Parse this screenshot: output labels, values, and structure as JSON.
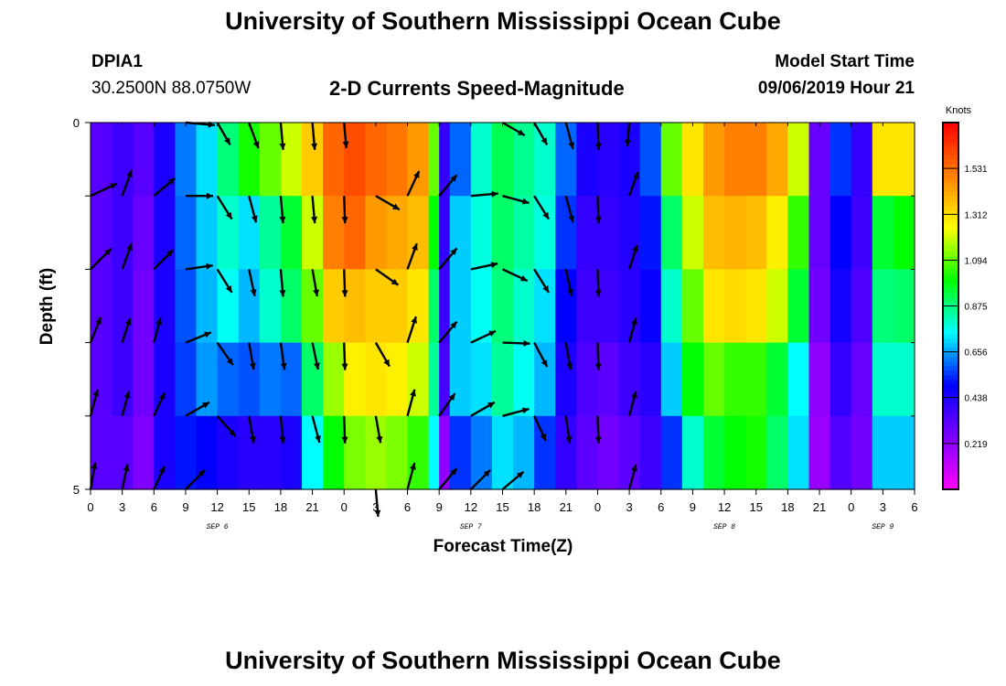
{
  "header": {
    "title": "University of Southern Mississippi Ocean Cube",
    "footer_title": "University of Southern Mississippi Ocean Cube",
    "station_id": "DPIA1",
    "station_coords": "30.2500N 88.0750W",
    "subtitle": "2-D Currents Speed-Magnitude",
    "model_start_label": "Model Start Time",
    "model_start_value": "09/06/2019 Hour 21"
  },
  "chart_data": {
    "type": "heatmap",
    "title": "2-D Currents Speed-Magnitude",
    "xlabel": "Forecast Time(Z)",
    "ylabel": "Depth (ft)",
    "x_ticks": [
      "0",
      "3",
      "6",
      "9",
      "12",
      "15",
      "18",
      "21",
      "0",
      "3",
      "6",
      "9",
      "12",
      "15",
      "18",
      "21",
      "0",
      "3",
      "6",
      "9",
      "12",
      "15",
      "18",
      "21",
      "0",
      "3",
      "6"
    ],
    "x_tick_hours": [
      0,
      3,
      6,
      9,
      12,
      15,
      18,
      21,
      24,
      27,
      30,
      33,
      36,
      39,
      42,
      45,
      48,
      51,
      54,
      57,
      60,
      63,
      66,
      69,
      72,
      75,
      78
    ],
    "x_range_hours": [
      0,
      78
    ],
    "date_labels": [
      {
        "text": "SEP 6",
        "hour": 12
      },
      {
        "text": "SEP 7",
        "hour": 36
      },
      {
        "text": "SEP 8",
        "hour": 60
      },
      {
        "text": "SEP 9",
        "hour": 75
      }
    ],
    "y_tick_labels": [
      {
        "value": 0,
        "text": "0"
      },
      {
        "value": 5,
        "text": "5"
      }
    ],
    "y_range": [
      0,
      5
    ],
    "depth_rows": [
      0.5,
      1.5,
      2.5,
      3.5,
      4.5
    ],
    "colorbar": {
      "label": "Knots",
      "ticks": [
        "0.219",
        "0.438",
        "0.656",
        "0.875",
        "1.094",
        "1.312",
        "1.531"
      ],
      "tick_values": [
        0.219,
        0.438,
        0.656,
        0.875,
        1.094,
        1.312,
        1.531
      ],
      "range": [
        0,
        1.75
      ],
      "colors": [
        "#ff00ff",
        "#8000ff",
        "#0000ff",
        "#00ffff",
        "#00ff00",
        "#ffff00",
        "#ff8000",
        "#ff0000"
      ]
    },
    "speed_by_hour": [
      {
        "hour": 0,
        "speeds": [
          0.33,
          0.33,
          0.33,
          0.33,
          0.33
        ]
      },
      {
        "hour": 2,
        "speeds": [
          0.38,
          0.38,
          0.38,
          0.38,
          0.33
        ]
      },
      {
        "hour": 4,
        "speeds": [
          0.33,
          0.3,
          0.28,
          0.28,
          0.25
        ]
      },
      {
        "hour": 6,
        "speeds": [
          0.45,
          0.45,
          0.45,
          0.45,
          0.45
        ]
      },
      {
        "hour": 8,
        "speeds": [
          0.62,
          0.6,
          0.58,
          0.56,
          0.52
        ]
      },
      {
        "hour": 10,
        "speeds": [
          0.72,
          0.7,
          0.68,
          0.65,
          0.5
        ]
      },
      {
        "hour": 12,
        "speeds": [
          0.88,
          0.8,
          0.76,
          0.6,
          0.45
        ]
      },
      {
        "hour": 14,
        "speeds": [
          1.02,
          0.72,
          0.68,
          0.58,
          0.42
        ]
      },
      {
        "hour": 16,
        "speeds": [
          1.1,
          0.85,
          0.8,
          0.62,
          0.42
        ]
      },
      {
        "hour": 18,
        "speeds": [
          1.2,
          0.95,
          0.9,
          0.6,
          0.45
        ]
      },
      {
        "hour": 20,
        "speeds": [
          1.35,
          1.2,
          1.1,
          0.9,
          0.75
        ]
      },
      {
        "hour": 22,
        "speeds": [
          1.55,
          1.5,
          1.35,
          1.15,
          1.0
        ]
      },
      {
        "hour": 24,
        "speeds": [
          1.6,
          1.55,
          1.38,
          1.28,
          1.12
        ]
      },
      {
        "hour": 26,
        "speeds": [
          1.55,
          1.45,
          1.35,
          1.3,
          1.15
        ]
      },
      {
        "hour": 28,
        "speeds": [
          1.52,
          1.42,
          1.35,
          1.28,
          1.12
        ]
      },
      {
        "hour": 30,
        "speeds": [
          1.45,
          1.38,
          1.3,
          1.2,
          1.05
        ]
      },
      {
        "hour": 32,
        "speeds": [
          1.1,
          1.0,
          0.9,
          0.85,
          0.75
        ]
      },
      {
        "hour": 33,
        "speeds": [
          0.4,
          0.4,
          0.38,
          0.36,
          0.22
        ]
      },
      {
        "hour": 34,
        "speeds": [
          0.6,
          0.7,
          0.7,
          0.7,
          0.55
        ]
      },
      {
        "hour": 36,
        "speeds": [
          0.8,
          0.78,
          0.76,
          0.72,
          0.62
        ]
      },
      {
        "hour": 38,
        "speeds": [
          0.92,
          0.9,
          0.88,
          0.85,
          0.72
        ]
      },
      {
        "hour": 40,
        "speeds": [
          0.86,
          0.84,
          0.8,
          0.76,
          0.68
        ]
      },
      {
        "hour": 42,
        "speeds": [
          0.8,
          0.78,
          0.72,
          0.68,
          0.55
        ]
      },
      {
        "hour": 44,
        "speeds": [
          0.6,
          0.55,
          0.5,
          0.45,
          0.4
        ]
      },
      {
        "hour": 46,
        "speeds": [
          0.45,
          0.4,
          0.38,
          0.35,
          0.32
        ]
      },
      {
        "hour": 48,
        "speeds": [
          0.42,
          0.4,
          0.38,
          0.32,
          0.28
        ]
      },
      {
        "hour": 50,
        "speeds": [
          0.45,
          0.43,
          0.42,
          0.38,
          0.32
        ]
      },
      {
        "hour": 52,
        "speeds": [
          0.58,
          0.52,
          0.48,
          0.42,
          0.38
        ]
      },
      {
        "hour": 54,
        "speeds": [
          1.1,
          0.9,
          0.8,
          0.7,
          0.55
        ]
      },
      {
        "hour": 56,
        "speeds": [
          1.3,
          1.2,
          1.1,
          1.0,
          0.8
        ]
      },
      {
        "hour": 58,
        "speeds": [
          1.45,
          1.38,
          1.3,
          1.1,
          0.95
        ]
      },
      {
        "hour": 60,
        "speeds": [
          1.5,
          1.4,
          1.32,
          1.05,
          1.0
        ]
      },
      {
        "hour": 62,
        "speeds": [
          1.5,
          1.38,
          1.3,
          1.05,
          1.02
        ]
      },
      {
        "hour": 64,
        "speeds": [
          1.42,
          1.28,
          1.2,
          0.95,
          0.9
        ]
      },
      {
        "hour": 66,
        "speeds": [
          1.2,
          1.05,
          0.95,
          0.75,
          0.72
        ]
      },
      {
        "hour": 68,
        "speeds": [
          0.3,
          0.3,
          0.28,
          0.22,
          0.2
        ]
      },
      {
        "hour": 70,
        "speeds": [
          0.55,
          0.5,
          0.46,
          0.4,
          0.34
        ]
      },
      {
        "hour": 72,
        "speeds": [
          0.4,
          0.38,
          0.35,
          0.3,
          0.28
        ]
      },
      {
        "hour": 74,
        "speeds": [
          1.3,
          0.95,
          0.88,
          0.8,
          0.7
        ]
      },
      {
        "hour": 76,
        "speeds": [
          1.3,
          1.0,
          0.9,
          0.8,
          0.7
        ]
      }
    ],
    "arrows": [
      {
        "hour": 0,
        "depth": 1,
        "dir": 65,
        "len": 32
      },
      {
        "hour": 0,
        "depth": 2,
        "dir": 45,
        "len": 32
      },
      {
        "hour": 0,
        "depth": 3,
        "dir": 22,
        "len": 30
      },
      {
        "hour": 0,
        "depth": 4,
        "dir": 15,
        "len": 30
      },
      {
        "hour": 0,
        "depth": 5,
        "dir": 10,
        "len": 30
      },
      {
        "hour": 6,
        "depth": 1,
        "dir": 20,
        "len": 30
      },
      {
        "hour": 6,
        "depth": 2,
        "dir": 20,
        "len": 30
      },
      {
        "hour": 6,
        "depth": 3,
        "dir": 18,
        "len": 28
      },
      {
        "hour": 6,
        "depth": 4,
        "dir": 15,
        "len": 28
      },
      {
        "hour": 6,
        "depth": 5,
        "dir": 12,
        "len": 28
      },
      {
        "hour": 12,
        "depth": 1,
        "dir": 50,
        "len": 30
      },
      {
        "hour": 12,
        "depth": 2,
        "dir": 45,
        "len": 30
      },
      {
        "hour": 12,
        "depth": 3,
        "dir": 15,
        "len": 28
      },
      {
        "hour": 12,
        "depth": 4,
        "dir": 25,
        "len": 28
      },
      {
        "hour": 12,
        "depth": 5,
        "dir": 25,
        "len": 28
      },
      {
        "hour": 18,
        "depth": 0,
        "dir": 95,
        "len": 32
      },
      {
        "hour": 18,
        "depth": 1,
        "dir": 90,
        "len": 30
      },
      {
        "hour": 18,
        "depth": 2,
        "dir": 82,
        "len": 30
      },
      {
        "hour": 18,
        "depth": 3,
        "dir": 68,
        "len": 30
      },
      {
        "hour": 18,
        "depth": 4,
        "dir": 60,
        "len": 30
      },
      {
        "hour": 18,
        "depth": 5,
        "dir": 45,
        "len": 30
      },
      {
        "hour": 24,
        "depth": 0,
        "dir": 150,
        "len": 28
      },
      {
        "hour": 24,
        "depth": 1,
        "dir": 148,
        "len": 30
      },
      {
        "hour": 24,
        "depth": 2,
        "dir": 148,
        "len": 30
      },
      {
        "hour": 24,
        "depth": 3,
        "dir": 145,
        "len": 30
      },
      {
        "hour": 24,
        "depth": 4,
        "dir": 138,
        "len": 30
      },
      {
        "hour": 30,
        "depth": 0,
        "dir": 160,
        "len": 30
      },
      {
        "hour": 30,
        "depth": 1,
        "dir": 165,
        "len": 30
      },
      {
        "hour": 30,
        "depth": 2,
        "dir": 168,
        "len": 30
      },
      {
        "hour": 30,
        "depth": 3,
        "dir": 170,
        "len": 30
      },
      {
        "hour": 30,
        "depth": 4,
        "dir": 170,
        "len": 30
      },
      {
        "hour": 36,
        "depth": 0,
        "dir": 175,
        "len": 30
      },
      {
        "hour": 36,
        "depth": 1,
        "dir": 175,
        "len": 30
      },
      {
        "hour": 36,
        "depth": 2,
        "dir": 175,
        "len": 30
      },
      {
        "hour": 36,
        "depth": 3,
        "dir": 172,
        "len": 30
      },
      {
        "hour": 36,
        "depth": 4,
        "dir": 175,
        "len": 30
      },
      {
        "hour": 42,
        "depth": 0,
        "dir": 175,
        "len": 30
      },
      {
        "hour": 42,
        "depth": 1,
        "dir": 175,
        "len": 30
      },
      {
        "hour": 42,
        "depth": 2,
        "dir": 170,
        "len": 30
      },
      {
        "hour": 42,
        "depth": 3,
        "dir": 168,
        "len": 30
      },
      {
        "hour": 42,
        "depth": 4,
        "dir": 165,
        "len": 30
      },
      {
        "hour": 48,
        "depth": 0,
        "dir": 175,
        "len": 28
      },
      {
        "hour": 48,
        "depth": 1,
        "dir": 178,
        "len": 30
      },
      {
        "hour": 48,
        "depth": 2,
        "dir": 178,
        "len": 30
      },
      {
        "hour": 48,
        "depth": 3,
        "dir": 178,
        "len": 30
      },
      {
        "hour": 48,
        "depth": 4,
        "dir": 178,
        "len": 30
      },
      {
        "hour": 54,
        "depth": 1,
        "dir": 120,
        "len": 30
      },
      {
        "hour": 54,
        "depth": 2,
        "dir": 125,
        "len": 30
      },
      {
        "hour": 54,
        "depth": 3,
        "dir": 150,
        "len": 30
      },
      {
        "hour": 54,
        "depth": 4,
        "dir": 170,
        "len": 30
      },
      {
        "hour": 54,
        "depth": 5,
        "dir": 175,
        "len": 30
      },
      {
        "hour": 60,
        "depth": 1,
        "dir": 25,
        "len": 30
      },
      {
        "hour": 60,
        "depth": 2,
        "dir": 20,
        "len": 30
      },
      {
        "hour": 60,
        "depth": 3,
        "dir": 18,
        "len": 30
      },
      {
        "hour": 60,
        "depth": 4,
        "dir": 15,
        "len": 30
      },
      {
        "hour": 60,
        "depth": 5,
        "dir": 15,
        "len": 30
      },
      {
        "hour": 66,
        "depth": 1,
        "dir": 40,
        "len": 30
      },
      {
        "hour": 66,
        "depth": 2,
        "dir": 40,
        "len": 30
      },
      {
        "hour": 66,
        "depth": 3,
        "dir": 40,
        "len": 30
      },
      {
        "hour": 66,
        "depth": 4,
        "dir": 35,
        "len": 30
      },
      {
        "hour": 66,
        "depth": 5,
        "dir": 40,
        "len": 30
      },
      {
        "hour": 72,
        "depth": 1,
        "dir": 85,
        "len": 30
      },
      {
        "hour": 72,
        "depth": 2,
        "dir": 78,
        "len": 30
      },
      {
        "hour": 72,
        "depth": 3,
        "dir": 65,
        "len": 30
      },
      {
        "hour": 72,
        "depth": 4,
        "dir": 60,
        "len": 30
      },
      {
        "hour": 72,
        "depth": 5,
        "dir": 45,
        "len": 30
      },
      {
        "hour": 78,
        "depth": 0,
        "dir": 120,
        "len": 28
      },
      {
        "hour": 78,
        "depth": 1,
        "dir": 105,
        "len": 30
      },
      {
        "hour": 78,
        "depth": 2,
        "dir": 115,
        "len": 30
      },
      {
        "hour": 78,
        "depth": 3,
        "dir": 92,
        "len": 30
      },
      {
        "hour": 78,
        "depth": 4,
        "dir": 75,
        "len": 30
      },
      {
        "hour": 78,
        "depth": 5,
        "dir": 50,
        "len": 30
      },
      {
        "hour": 84,
        "depth": 0,
        "dir": 150,
        "len": 28
      },
      {
        "hour": 84,
        "depth": 1,
        "dir": 148,
        "len": 30
      },
      {
        "hour": 84,
        "depth": 2,
        "dir": 148,
        "len": 30
      },
      {
        "hour": 84,
        "depth": 3,
        "dir": 152,
        "len": 30
      },
      {
        "hour": 84,
        "depth": 4,
        "dir": 155,
        "len": 30
      },
      {
        "hour": 90,
        "depth": 0,
        "dir": 165,
        "len": 30
      },
      {
        "hour": 90,
        "depth": 1,
        "dir": 165,
        "len": 30
      },
      {
        "hour": 90,
        "depth": 2,
        "dir": 168,
        "len": 30
      },
      {
        "hour": 90,
        "depth": 3,
        "dir": 170,
        "len": 30
      },
      {
        "hour": 90,
        "depth": 4,
        "dir": 172,
        "len": 30
      },
      {
        "hour": 96,
        "depth": 0,
        "dir": 178,
        "len": 30
      },
      {
        "hour": 96,
        "depth": 1,
        "dir": 178,
        "len": 30
      },
      {
        "hour": 96,
        "depth": 2,
        "dir": 178,
        "len": 30
      },
      {
        "hour": 96,
        "depth": 3,
        "dir": 178,
        "len": 30
      },
      {
        "hour": 96,
        "depth": 4,
        "dir": 178,
        "len": 30
      },
      {
        "hour": 102,
        "depth": 0,
        "dir": 185,
        "len": 26
      },
      {
        "hour": 102,
        "depth": 1,
        "dir": 20,
        "len": 28
      },
      {
        "hour": 102,
        "depth": 2,
        "dir": 18,
        "len": 28
      },
      {
        "hour": 102,
        "depth": 3,
        "dir": 15,
        "len": 28
      },
      {
        "hour": 102,
        "depth": 4,
        "dir": 15,
        "len": 28
      },
      {
        "hour": 102,
        "depth": 5,
        "dir": 15,
        "len": 28
      }
    ],
    "arrow_hour_scale": 0.5
  }
}
